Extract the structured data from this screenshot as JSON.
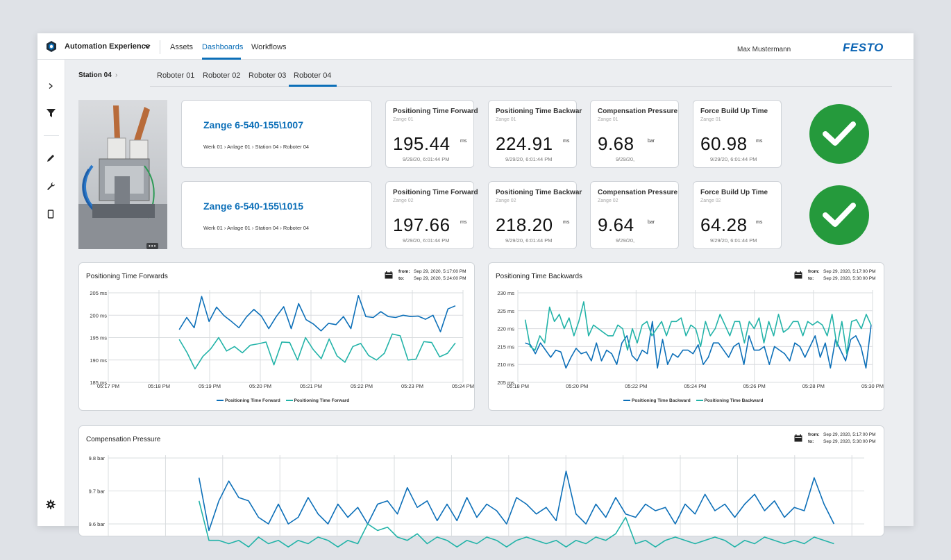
{
  "header": {
    "app_name": "Automation Experience",
    "nav": [
      "Assets",
      "Dashboards",
      "Workflows"
    ],
    "active_nav": "Dashboards",
    "user": "Max Mustermann",
    "brand": "FESTO"
  },
  "sidebar": {
    "icons": [
      "chevron-right-icon",
      "filter-icon",
      "pencil-icon",
      "wrench-icon",
      "tablet-icon",
      "gear-icon"
    ]
  },
  "breadcrumb": "Station 04",
  "tabs": [
    "Roboter 01",
    "Roboter 02",
    "Roboter 03",
    "Roboter 04"
  ],
  "active_tab": "Roboter 04",
  "grippers": [
    {
      "title": "Zange 6-540-155\\1007",
      "path": "Werk 01 › Anlage 01 › Station 04 › Roboter 04",
      "status": "ok",
      "kpis": [
        {
          "title": "Positioning Time Forward",
          "sub": "Zange 01",
          "value": "195.44",
          "unit": "ms",
          "time": "9/29/20, 6:01:44 PM"
        },
        {
          "title": "Positioning Time Backwar",
          "sub": "Zange 01",
          "value": "224.91",
          "unit": "ms",
          "time": "9/29/20, 6:01:44 PM"
        },
        {
          "title": "Compensation Pressure",
          "sub": "Zange 01",
          "value": "9.68",
          "unit": "bar",
          "time": "9/29/20,"
        },
        {
          "title": "Force Build Up Time",
          "sub": "Zange 01",
          "value": "60.98",
          "unit": "ms",
          "time": "9/29/20, 6:01:44 PM"
        }
      ]
    },
    {
      "title": "Zange 6-540-155\\1015",
      "path": "Werk 01 › Anlage 01 › Station 04 › Roboter 04",
      "status": "ok",
      "kpis": [
        {
          "title": "Positioning Time Forward",
          "sub": "Zange 02",
          "value": "197.66",
          "unit": "ms",
          "time": "9/29/20, 6:01:44 PM"
        },
        {
          "title": "Positioning Time Backwar",
          "sub": "Zange 02",
          "value": "218.20",
          "unit": "ms",
          "time": "9/29/20, 6:01:44 PM"
        },
        {
          "title": "Compensation Pressure",
          "sub": "Zange 02",
          "value": "9.64",
          "unit": "bar",
          "time": "9/29/20,"
        },
        {
          "title": "Force Build Up Time",
          "sub": "Zange 02",
          "value": "64.28",
          "unit": "ms",
          "time": "9/29/20, 6:01:44 PM"
        }
      ]
    }
  ],
  "colors": {
    "series_a": "#0c6fb8",
    "series_b": "#22b3a8",
    "accent": "#0c6fb8",
    "ok": "#259a3c"
  },
  "chart_data": [
    {
      "type": "line",
      "title": "Positioning Time Forwards",
      "range": {
        "from_label": "from:",
        "from": "Sep 29, 2020, 5:17:00 PM",
        "to_label": "to:",
        "to": "Sep 29, 2020, 5:24:00 PM"
      },
      "x_ticks": [
        "05:17 PM",
        "05:18 PM",
        "05:19 PM",
        "05:20 PM",
        "05:21 PM",
        "05:22 PM",
        "05:23 PM",
        "05:24 PM"
      ],
      "xlim": [
        0,
        7
      ],
      "y_ticks": [
        "185 ms",
        "190 ms",
        "195 ms",
        "200 ms",
        "205 ms"
      ],
      "ylim": [
        185,
        205
      ],
      "series": [
        {
          "name": "Positioning Time Forward",
          "x_start": 1.4,
          "x_end": 6.85,
          "values": [
            196.8,
            199.5,
            197.2,
            204.2,
            198.6,
            201.8,
            199.9,
            198.6,
            197.2,
            199.6,
            201.3,
            199.8,
            197.0,
            199.7,
            201.9,
            197.0,
            202.6,
            199.0,
            198.0,
            196.5,
            198.2,
            197.9,
            199.7,
            197.0,
            204.4,
            199.7,
            199.5,
            200.8,
            199.7,
            199.5,
            200.0,
            199.7,
            199.8,
            199.1,
            200.0,
            196.3,
            201.4,
            202.1
          ]
        },
        {
          "name": "Positioning Time Forward",
          "x_start": 1.4,
          "x_end": 6.85,
          "values": [
            194.6,
            191.6,
            188.0,
            190.8,
            192.5,
            195.0,
            192.0,
            193.0,
            191.6,
            193.3,
            193.6,
            194.0,
            188.9,
            194.0,
            193.9,
            190.0,
            195.0,
            192.3,
            190.3,
            194.7,
            190.9,
            189.5,
            193.0,
            193.7,
            191.0,
            190.0,
            191.5,
            195.8,
            195.4,
            190.0,
            190.2,
            194.1,
            193.9,
            190.7,
            191.5,
            193.8
          ]
        }
      ],
      "legend": [
        "Positioning Time Forward",
        "Positioning Time Forward"
      ]
    },
    {
      "type": "line",
      "title": "Positioning Time Backwards",
      "range": {
        "from_label": "from:",
        "from": "Sep 29, 2020, 5:17:00 PM",
        "to_label": "to:",
        "to": "Sep 29, 2020, 5:30:00 PM"
      },
      "x_ticks": [
        "05:18 PM",
        "05:20 PM",
        "05:22 PM",
        "05:24 PM",
        "05:26 PM",
        "05:28 PM",
        "05:30 PM"
      ],
      "xlim": [
        0,
        12
      ],
      "y_ticks": [
        "205 ms",
        "210 ms",
        "215 ms",
        "220 ms",
        "225 ms",
        "230 ms"
      ],
      "ylim": [
        205,
        230
      ],
      "series": [
        {
          "name": "Positioning Time Backward",
          "x_start": 0.25,
          "x_end": 11.95,
          "values": [
            216,
            215.5,
            213,
            216,
            214,
            212,
            214,
            213.5,
            209,
            212,
            214.5,
            213,
            213.5,
            211,
            216,
            211,
            214,
            213,
            210,
            216,
            218,
            212.5,
            211,
            214,
            213,
            222,
            209,
            217,
            210,
            213,
            212,
            214,
            214,
            213,
            215.5,
            210,
            212,
            216,
            216,
            214,
            212,
            215,
            216,
            210,
            218,
            214,
            214,
            215,
            210,
            215,
            214,
            213,
            211,
            216,
            215,
            212,
            215,
            218,
            212,
            216,
            209,
            217,
            214,
            211,
            217,
            218,
            215,
            209,
            221
          ]
        },
        {
          "name": "Positioning Time Backward",
          "x_start": 0.25,
          "x_end": 11.95,
          "values": [
            222.5,
            215,
            214,
            218,
            216,
            226,
            222,
            224,
            220,
            223,
            218,
            222,
            227.5,
            218,
            221,
            220,
            219,
            218,
            218,
            221,
            220,
            214,
            220,
            216,
            221,
            222,
            218,
            220,
            222,
            218,
            222,
            222,
            223,
            218,
            221,
            220,
            215,
            222,
            218,
            220,
            224,
            221,
            218,
            222,
            222,
            216,
            222,
            220,
            223,
            216,
            222,
            218,
            224,
            219,
            220,
            222,
            222,
            218,
            222,
            221,
            222,
            221,
            218,
            224,
            215,
            222,
            213,
            222,
            222.5,
            220,
            224,
            221
          ]
        }
      ],
      "legend": [
        "Positioning Time Backward",
        "Positioning Time Backward"
      ]
    },
    {
      "type": "line",
      "title": "Compensation Pressure",
      "range": {
        "from_label": "from:",
        "from": "Sep 29, 2020, 5:17:00 PM",
        "to_label": "to:",
        "to": "Sep 29, 2020, 5:30:00 PM"
      },
      "y_ticks": [
        "9.6 bar",
        "9.7 bar",
        "9.8 bar"
      ],
      "ylim": [
        9.6,
        9.8
      ],
      "series": [
        {
          "name": "",
          "x_start": 0.12,
          "x_end": 0.96,
          "values": [
            9.74,
            9.58,
            9.67,
            9.73,
            9.68,
            9.67,
            9.62,
            9.6,
            9.66,
            9.6,
            9.62,
            9.68,
            9.63,
            9.6,
            9.66,
            9.62,
            9.65,
            9.6,
            9.66,
            9.67,
            9.63,
            9.71,
            9.65,
            9.67,
            9.61,
            9.66,
            9.61,
            9.68,
            9.62,
            9.66,
            9.64,
            9.6,
            9.68,
            9.66,
            9.63,
            9.65,
            9.61,
            9.76,
            9.63,
            9.6,
            9.66,
            9.62,
            9.68,
            9.63,
            9.62,
            9.66,
            9.64,
            9.65,
            9.6,
            9.66,
            9.63,
            9.69,
            9.64,
            9.66,
            9.62,
            9.66,
            9.69,
            9.64,
            9.67,
            9.62,
            9.65,
            9.64,
            9.74,
            9.66,
            9.6
          ]
        },
        {
          "name": "",
          "x_start": 0.12,
          "x_end": 0.96,
          "values": [
            9.67,
            9.55,
            9.55,
            9.54,
            9.55,
            9.53,
            9.56,
            9.54,
            9.55,
            9.53,
            9.55,
            9.54,
            9.56,
            9.55,
            9.53,
            9.55,
            9.54,
            9.6,
            9.58,
            9.59,
            9.56,
            9.55,
            9.57,
            9.54,
            9.56,
            9.55,
            9.53,
            9.55,
            9.54,
            9.56,
            9.55,
            9.53,
            9.55,
            9.56,
            9.55,
            9.54,
            9.55,
            9.53,
            9.55,
            9.54,
            9.56,
            9.55,
            9.57,
            9.62,
            9.54,
            9.55,
            9.53,
            9.55,
            9.56,
            9.55,
            9.54,
            9.55,
            9.56,
            9.55,
            9.53,
            9.55,
            9.54,
            9.56,
            9.55,
            9.54,
            9.55,
            9.54,
            9.56,
            9.55,
            9.54
          ]
        }
      ]
    }
  ]
}
